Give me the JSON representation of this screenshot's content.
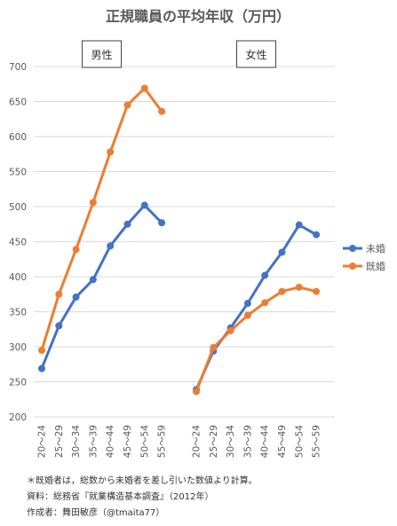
{
  "chart_data": {
    "type": "line",
    "title": "正規職員の平均年収（万円）",
    "ylim": [
      200,
      700
    ],
    "yticks": [
      200,
      250,
      300,
      350,
      400,
      450,
      500,
      550,
      600,
      650,
      700
    ],
    "grid": true,
    "legend_position": "right",
    "groups": [
      {
        "label": "男性",
        "categories": [
          "20～24",
          "25～29",
          "30～34",
          "35～39",
          "40～44",
          "45～49",
          "50～54",
          "55～59"
        ],
        "series": [
          {
            "name": "未婚",
            "color": "#4472C4",
            "values": [
              269,
              330,
              371,
              396,
              444,
              475,
              502,
              477
            ]
          },
          {
            "name": "既婚",
            "color": "#ED7D31",
            "values": [
              295,
              375,
              439,
              506,
              578,
              645,
              669,
              636
            ]
          }
        ]
      },
      {
        "label": "女性",
        "categories": [
          "20～24",
          "25～29",
          "30～34",
          "35～39",
          "40～44",
          "45～49",
          "50～54",
          "55～59"
        ],
        "series": [
          {
            "name": "未婚",
            "color": "#4472C4",
            "values": [
              239,
              294,
              327,
              362,
              402,
              435,
              474,
              460
            ]
          },
          {
            "name": "既婚",
            "color": "#ED7D31",
            "values": [
              236,
              299,
              323,
              345,
              363,
              379,
              385,
              379
            ]
          }
        ]
      }
    ],
    "legend": [
      {
        "name": "未婚",
        "color": "#4472C4"
      },
      {
        "name": "既婚",
        "color": "#ED7D31"
      }
    ]
  },
  "notes": [
    "＊既婚者は，総数から未婚者を差し引いた数値より計算。",
    "資料：総務省『就業構造基本調査』（2012年）",
    "作成者：舞田敏彦（@tmaita77）"
  ]
}
